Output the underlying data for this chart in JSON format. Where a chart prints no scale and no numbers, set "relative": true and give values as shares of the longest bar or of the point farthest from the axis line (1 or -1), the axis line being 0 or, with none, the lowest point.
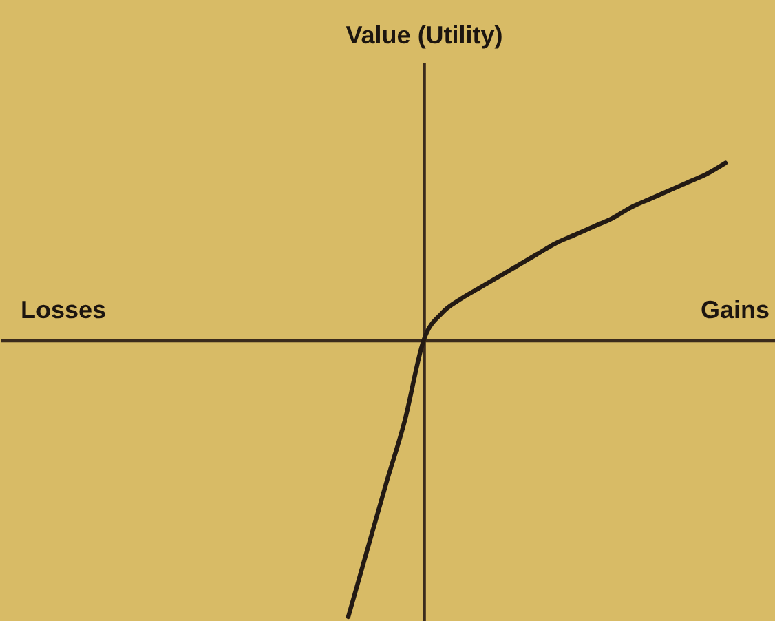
{
  "chart_data": {
    "type": "line",
    "ylabel": "Value (Utility)",
    "annotations": [
      "Losses",
      "Gains"
    ],
    "categories": [
      null,
      null,
      null,
      null,
      null,
      null,
      null,
      null,
      null,
      null,
      null,
      null,
      null,
      null,
      null,
      null,
      null,
      null,
      null,
      null,
      null
    ],
    "values": [
      -1,
      -0.76,
      -0.52,
      -0.29,
      0,
      0.1,
      0.15,
      0.19,
      0.23,
      0.27,
      0.31,
      0.35,
      0.38,
      0.41,
      0.44,
      0.48,
      0.51,
      0.54,
      0.57,
      0.6,
      0.64
    ],
    "color": "#231a14",
    "relative": true,
    "marker": "none",
    "line_style": "solid"
  }
}
